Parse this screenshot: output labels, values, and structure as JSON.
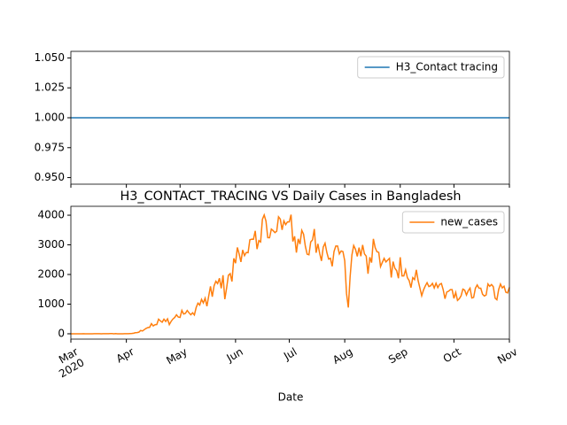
{
  "chart_data": [
    {
      "type": "line",
      "ylim": [
        0.9445,
        1.0555
      ],
      "yticks": [
        {
          "value": 0.95,
          "label": "0.950"
        },
        {
          "value": 0.975,
          "label": "0.975"
        },
        {
          "value": 1.0,
          "label": "1.000"
        },
        {
          "value": 1.025,
          "label": "1.025"
        },
        {
          "value": 1.05,
          "label": "1.050"
        }
      ],
      "legend": "upper right",
      "grid": false,
      "series": [
        {
          "name": "H3_Contact tracing",
          "color": "#1f77b4",
          "values": [
            1,
            1,
            1,
            1,
            1,
            1,
            1,
            1,
            1,
            1,
            1,
            1,
            1,
            1,
            1,
            1,
            1,
            1,
            1,
            1,
            1,
            1,
            1,
            1,
            1,
            1,
            1,
            1,
            1,
            1,
            1,
            1,
            1,
            1,
            1,
            1,
            1,
            1,
            1,
            1,
            1,
            1,
            1,
            1,
            1,
            1,
            1,
            1,
            1,
            1,
            1,
            1,
            1,
            1,
            1,
            1,
            1,
            1,
            1,
            1,
            1,
            1,
            1,
            1,
            1,
            1,
            1,
            1,
            1,
            1,
            1,
            1,
            1,
            1,
            1,
            1,
            1,
            1,
            1,
            1,
            1,
            1,
            1,
            1,
            1,
            1,
            1,
            1,
            1,
            1,
            1,
            1,
            1,
            1,
            1,
            1,
            1,
            1,
            1,
            1,
            1,
            1,
            1,
            1,
            1,
            1,
            1,
            1,
            1,
            1,
            1,
            1,
            1,
            1,
            1,
            1,
            1,
            1,
            1,
            1,
            1,
            1,
            1,
            1,
            1,
            1,
            1,
            1,
            1,
            1,
            1,
            1,
            1,
            1,
            1,
            1,
            1,
            1,
            1,
            1,
            1,
            1,
            1,
            1,
            1,
            1,
            1,
            1,
            1,
            1,
            1,
            1,
            1,
            1,
            1,
            1,
            1,
            1,
            1,
            1,
            1,
            1,
            1,
            1,
            1,
            1,
            1,
            1,
            1,
            1,
            1,
            1,
            1,
            1,
            1,
            1,
            1,
            1,
            1,
            1,
            1,
            1,
            1,
            1,
            1,
            1,
            1,
            1,
            1,
            1,
            1,
            1,
            1,
            1,
            1,
            1,
            1,
            1,
            1,
            1,
            1,
            1,
            1,
            1,
            1,
            1,
            1,
            1,
            1,
            1,
            1,
            1,
            1,
            1,
            1,
            1,
            1,
            1,
            1,
            1,
            1,
            1,
            1,
            1,
            1,
            1,
            1,
            1,
            1,
            1,
            1,
            1,
            1,
            1,
            1,
            1,
            1,
            1,
            1,
            1,
            1,
            1,
            1,
            1,
            1,
            1
          ]
        }
      ]
    },
    {
      "type": "line",
      "title": "H3_CONTACT_TRACING VS Daily Cases in Bangladesh",
      "xlabel": "Date",
      "ylim": [
        -180,
        4300
      ],
      "yticks": [
        0,
        1000,
        2000,
        3000,
        4000
      ],
      "legend": "upper right",
      "grid": false,
      "categories": [
        "Mar\n2020",
        null,
        null,
        null,
        null,
        null,
        null,
        null,
        null,
        null,
        null,
        null,
        null,
        null,
        null,
        null,
        null,
        null,
        null,
        null,
        null,
        null,
        null,
        null,
        null,
        null,
        null,
        null,
        null,
        null,
        null,
        "Apr",
        null,
        null,
        null,
        null,
        null,
        null,
        null,
        null,
        null,
        null,
        null,
        null,
        null,
        null,
        null,
        null,
        null,
        null,
        null,
        null,
        null,
        null,
        null,
        null,
        null,
        null,
        null,
        null,
        null,
        "May",
        null,
        null,
        null,
        null,
        null,
        null,
        null,
        null,
        null,
        null,
        null,
        null,
        null,
        null,
        null,
        null,
        null,
        null,
        null,
        null,
        null,
        null,
        null,
        null,
        null,
        null,
        null,
        null,
        null,
        null,
        "Jun",
        null,
        null,
        null,
        null,
        null,
        null,
        null,
        null,
        null,
        null,
        null,
        null,
        null,
        null,
        null,
        null,
        null,
        null,
        null,
        null,
        null,
        null,
        null,
        null,
        null,
        null,
        null,
        null,
        null,
        "Jul",
        null,
        null,
        null,
        null,
        null,
        null,
        null,
        null,
        null,
        null,
        null,
        null,
        null,
        null,
        null,
        null,
        null,
        null,
        null,
        null,
        null,
        null,
        null,
        null,
        null,
        null,
        null,
        null,
        null,
        null,
        "Aug",
        null,
        null,
        null,
        null,
        null,
        null,
        null,
        null,
        null,
        null,
        null,
        null,
        null,
        null,
        null,
        null,
        null,
        null,
        null,
        null,
        null,
        null,
        null,
        null,
        null,
        null,
        null,
        null,
        null,
        null,
        "Sep",
        null,
        null,
        null,
        null,
        null,
        null,
        null,
        null,
        null,
        null,
        null,
        null,
        null,
        null,
        null,
        null,
        null,
        null,
        null,
        null,
        null,
        null,
        null,
        null,
        null,
        null,
        null,
        null,
        null,
        "Oct",
        null,
        null,
        null,
        null,
        null,
        null,
        null,
        null,
        null,
        null,
        null,
        null,
        null,
        null,
        null,
        null,
        null,
        null,
        null,
        null,
        null,
        null,
        null,
        null,
        null,
        null,
        null,
        null,
        null,
        null,
        "Nov"
      ],
      "series": [
        {
          "name": "new_cases",
          "color": "#ff7f0e",
          "values": [
            0,
            0,
            0,
            0,
            0,
            0,
            0,
            3,
            0,
            0,
            0,
            0,
            0,
            2,
            2,
            3,
            4,
            0,
            4,
            2,
            3,
            3,
            6,
            6,
            0,
            5,
            0,
            0,
            0,
            1,
            2,
            3,
            2,
            5,
            9,
            18,
            35,
            41,
            54,
            112,
            94,
            139,
            182,
            209,
            219,
            341,
            266,
            306,
            312,
            492,
            434,
            390,
            492,
            414,
            503,
            309,
            418,
            497,
            549,
            641,
            564,
            552,
            790,
            665,
            688,
            786,
            706,
            641,
            709,
            636,
            887,
            1034,
            969,
            1162,
            1041,
            1202,
            930,
            1273,
            1602,
            1251,
            1617,
            1773,
            1694,
            1873,
            1532,
            1975,
            1166,
            1541,
            1975,
            2029,
            1764,
            2545,
            2381,
            2911,
            2695,
            2423,
            2828,
            2635,
            2743,
            2735,
            3171,
            3190,
            3187,
            3471,
            2856,
            3141,
            3099,
            3862,
            4008,
            3803,
            3243,
            3240,
            3531,
            3480,
            3412,
            3462,
            3946,
            3868,
            3504,
            3809,
            3682,
            3775,
            3775,
            4019,
            3114,
            3288,
            2738,
            3201,
            3027,
            3489,
            3360,
            2949,
            2686,
            2666,
            3099,
            3163,
            3533,
            2733,
            3034,
            2709,
            2459,
            2928,
            3057,
            2744,
            2520,
            2548,
            2275,
            2772,
            2960,
            2960,
            2695,
            2795,
            2772,
            2459,
            1356,
            887,
            1918,
            2654,
            2977,
            2851,
            2611,
            2907,
            2617,
            2996,
            2695,
            2617,
            2024,
            2582,
            2401,
            3200,
            2907,
            2768,
            2747,
            2265,
            2409,
            2545,
            2424,
            2485,
            2545,
            1897,
            2436,
            2211,
            2131,
            1873,
            2582,
            1950,
            1950,
            2158,
            1892,
            1792,
            1557,
            1892,
            1827,
            2157,
            1792,
            1541,
            1283,
            1476,
            1615,
            1724,
            1593,
            1620,
            1701,
            1544,
            1705,
            1557,
            1666,
            1695,
            1488,
            1182,
            1407,
            1436,
            1488,
            1488,
            1193,
            1396,
            1125,
            1182,
            1282,
            1507,
            1472,
            1308,
            1453,
            1541,
            1209,
            1227,
            1537,
            1646,
            1537,
            1538,
            1334,
            1274,
            1308,
            1681,
            1602,
            1660,
            1586,
            1200,
            1148,
            1493,
            1678,
            1548,
            1604,
            1401,
            1380,
            1568
          ]
        }
      ]
    }
  ]
}
